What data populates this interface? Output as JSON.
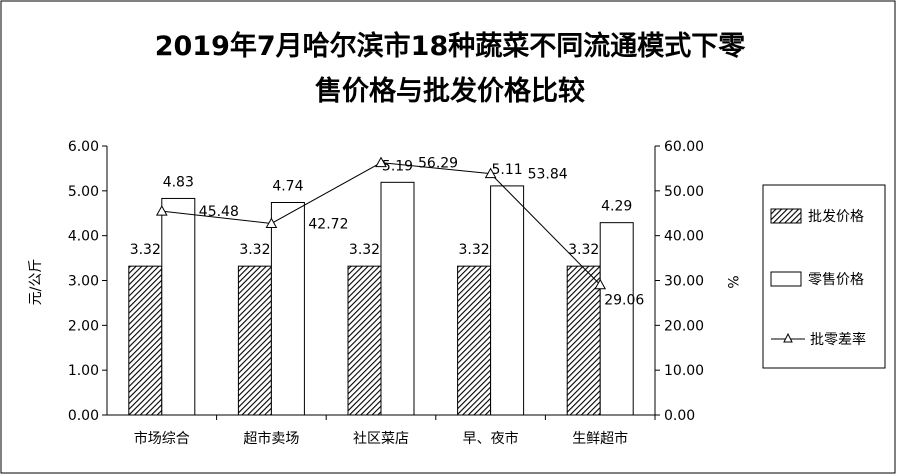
{
  "chart_data": {
    "type": "bar",
    "title_line1": "2019年7月哈尔滨市18种蔬菜不同流通模式下零",
    "title_line2": "售价格与批发价格比较",
    "ylabel": "元/公斤",
    "y2label": "%",
    "ylim": [
      0,
      6
    ],
    "y2lim": [
      0,
      60
    ],
    "yticks": [
      "0.00",
      "1.00",
      "2.00",
      "3.00",
      "4.00",
      "5.00",
      "6.00"
    ],
    "y2ticks": [
      "0.00",
      "10.00",
      "20.00",
      "30.00",
      "40.00",
      "50.00",
      "60.00"
    ],
    "categories": [
      "市场综合",
      "超市卖场",
      "社区菜店",
      "早、夜市",
      "生鲜超市"
    ],
    "series": [
      {
        "name": "批发价格",
        "type": "bar",
        "pattern": "hatched",
        "values": [
          3.32,
          3.32,
          3.32,
          3.32,
          3.32
        ],
        "labels": [
          "3.32",
          "3.32",
          "3.32",
          "3.32",
          "3.32"
        ]
      },
      {
        "name": "零售价格",
        "type": "bar",
        "pattern": "white",
        "values": [
          4.83,
          4.74,
          5.19,
          5.11,
          4.29
        ],
        "labels": [
          "4.83",
          "4.74",
          "5.19",
          "5.11",
          "4.29"
        ]
      },
      {
        "name": "批零差率",
        "type": "line",
        "axis": "right",
        "marker": "triangle",
        "values": [
          45.48,
          42.72,
          56.29,
          53.84,
          29.06
        ],
        "labels": [
          "45.48",
          "42.72",
          "56.29",
          "53.84",
          "29.06"
        ]
      }
    ],
    "legend": "right",
    "grid": false
  }
}
